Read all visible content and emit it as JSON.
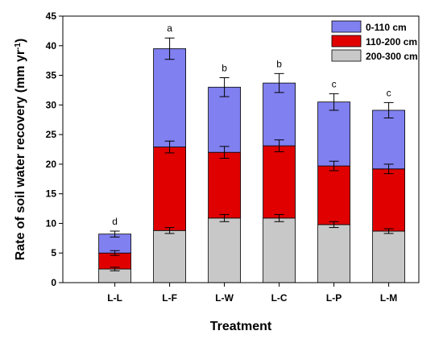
{
  "chart_data": {
    "type": "bar",
    "stacked": true,
    "categories": [
      "L-L",
      "L-F",
      "L-W",
      "L-C",
      "L-P",
      "L-M"
    ],
    "xlabel": "Treatment",
    "ylabel_main": "Rate of soil water recovery (mm  yr",
    "ylabel_sup": "-1",
    "ylabel_end": ")",
    "ylim": [
      0,
      45
    ],
    "yticks": [
      0,
      5,
      10,
      15,
      20,
      25,
      30,
      35,
      40,
      45
    ],
    "grid": false,
    "legend_position": "top-right",
    "series": [
      {
        "name": "200-300 cm",
        "color": "#c8c8c8",
        "values": [
          2.3,
          8.8,
          10.9,
          10.9,
          9.8,
          8.7
        ],
        "error": [
          0.3,
          0.5,
          0.6,
          0.6,
          0.5,
          0.4
        ]
      },
      {
        "name": "110-200 cm",
        "color": "#e00000",
        "values": [
          2.7,
          14.1,
          11.1,
          12.2,
          9.9,
          10.5
        ],
        "error": [
          0.4,
          1.0,
          1.0,
          1.0,
          0.8,
          0.8
        ]
      },
      {
        "name": "0-110 cm",
        "color": "#8080f0",
        "values": [
          3.2,
          16.6,
          11.0,
          10.6,
          10.8,
          9.9
        ],
        "error": [
          0.5,
          1.8,
          1.6,
          1.6,
          1.4,
          1.3
        ]
      }
    ],
    "significance": [
      "d",
      "a",
      "b",
      "b",
      "c",
      "c"
    ]
  }
}
